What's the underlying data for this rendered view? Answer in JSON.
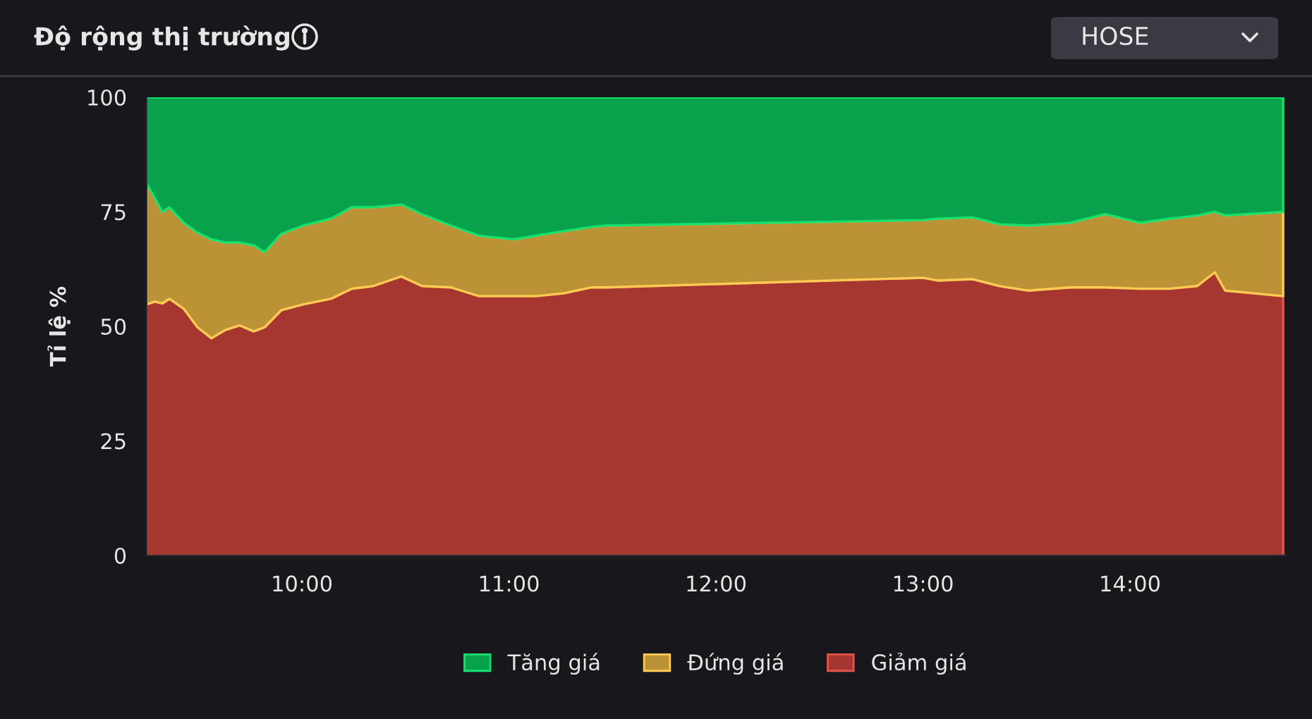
{
  "chart_data": {
    "type": "area",
    "stacked": true,
    "title": "Độ rộng thị trường",
    "ylabel": "Tỉ lệ %",
    "annotations": [
      "HOSE"
    ],
    "x": [
      9.25,
      9.29,
      9.325,
      9.36,
      9.43,
      9.495,
      9.563,
      9.63,
      9.7,
      9.767,
      9.82,
      9.9,
      10.005,
      10.14,
      10.24,
      10.345,
      10.48,
      10.58,
      10.72,
      10.855,
      11.025,
      11.13,
      11.265,
      11.4,
      11.47,
      13.0,
      13.07,
      13.24,
      13.37,
      13.51,
      13.71,
      13.88,
      14.05,
      14.19,
      14.325,
      14.41,
      14.46,
      14.74
    ],
    "series": [
      {
        "name": "Giảm giá",
        "color": "#a53730",
        "values": [
          54.8,
          55.4,
          55.0,
          56.0,
          53.8,
          49.8,
          47.4,
          49.2,
          50.2,
          48.9,
          49.8,
          53.5,
          54.8,
          56.0,
          58.2,
          58.8,
          60.9,
          58.8,
          58.5,
          56.6,
          56.6,
          56.6,
          57.2,
          58.5,
          58.5,
          60.6,
          60.0,
          60.3,
          58.8,
          57.8,
          58.5,
          58.5,
          58.2,
          58.2,
          58.8,
          61.8,
          57.8,
          56.6
        ]
      },
      {
        "name": "Đứng giá",
        "color": "#bb9336",
        "values": [
          26.4,
          22.6,
          20.0,
          20.0,
          18.8,
          20.7,
          21.6,
          19.1,
          18.1,
          18.8,
          16.4,
          16.7,
          17.2,
          17.5,
          17.8,
          17.2,
          15.7,
          15.7,
          13.5,
          13.2,
          12.4,
          13.2,
          13.6,
          13.2,
          13.5,
          12.6,
          13.5,
          13.5,
          13.5,
          14.2,
          14.1,
          16.0,
          14.4,
          15.3,
          15.4,
          13.2,
          16.4,
          18.4
        ]
      },
      {
        "name": "Tăng giá",
        "color": "#07a24b",
        "values": [
          18.8,
          22.0,
          25.0,
          24.0,
          27.4,
          29.5,
          31.0,
          31.7,
          31.7,
          32.3,
          33.8,
          29.8,
          28.0,
          26.5,
          24.0,
          24.0,
          23.4,
          25.5,
          28.0,
          30.2,
          31.0,
          30.2,
          29.2,
          28.3,
          28.0,
          26.8,
          26.5,
          26.2,
          27.7,
          28.0,
          27.4,
          25.5,
          27.4,
          26.5,
          25.8,
          25.0,
          25.8,
          25.0
        ]
      }
    ],
    "xlim": [
      9.25,
      14.75
    ],
    "xticks": [
      {
        "value": 10,
        "label": "10:00"
      },
      {
        "value": 11,
        "label": "11:00"
      },
      {
        "value": 12,
        "label": "12:00"
      },
      {
        "value": 13,
        "label": "13:00"
      },
      {
        "value": 14,
        "label": "14:00"
      }
    ],
    "ylim": [
      0,
      100
    ],
    "yticks": [
      0,
      25,
      50,
      75,
      100
    ],
    "grid": false,
    "legend": "bottom"
  }
}
